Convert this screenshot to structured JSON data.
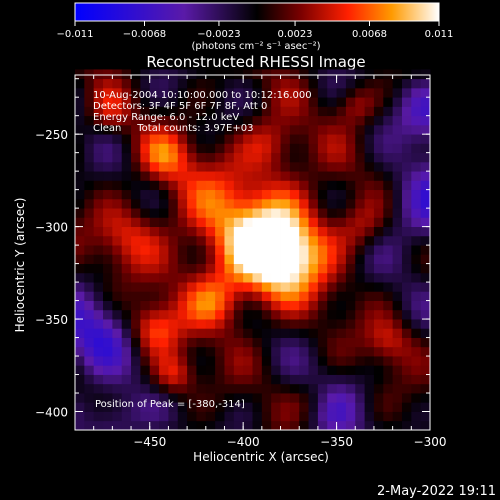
{
  "chart_data": {
    "type": "heatmap",
    "title": "Reconstructed RHESSI Image",
    "xlabel": "Heliocentric X (arcsec)",
    "ylabel": "Heliocentric Y (arcsec)",
    "xlim": [
      -490,
      -300
    ],
    "ylim": [
      -410,
      -218
    ],
    "x_ticks": [
      -450,
      -400,
      -350,
      -300
    ],
    "x_tick_labels": [
      "−450",
      "−400",
      "−350",
      "−300"
    ],
    "y_ticks": [
      -400,
      -350,
      -300,
      -250
    ],
    "y_tick_labels": [
      "−400",
      "−350",
      "−300",
      "−250"
    ],
    "colorbar": {
      "min": -0.011,
      "max": 0.011,
      "ticks": [
        -0.011,
        -0.0068,
        -0.0023,
        0.0023,
        0.0068,
        0.011
      ],
      "tick_labels": [
        "−0.011",
        "−0.0068",
        "−0.0023",
        "0.0023",
        "0.0068",
        "0.011"
      ],
      "units": "(photons cm⁻² s⁻¹ asec⁻²)",
      "colormap": "blue-purple-red-yellow-white"
    },
    "annotations": [
      "10-Aug-2004 10:10:00.000 to 10:12:16.000",
      "Detectors: 3F 4F 5F 6F 7F 8F, Att 0",
      "Energy Range: 6.0 - 12.0 keV",
      "Clean     Total counts: 3.97E+03"
    ],
    "peak_label": "Position of Peak = [-380,-314]",
    "peak_position": [
      -380,
      -314
    ],
    "sources": [
      {
        "x": -380,
        "y": -314,
        "peak": 0.011,
        "sigma": 16
      },
      {
        "x": -400,
        "y": -300,
        "peak": 0.0065,
        "sigma": 28
      },
      {
        "x": -448,
        "y": -355,
        "peak": 0.006,
        "sigma": 10
      },
      {
        "x": -437,
        "y": -380,
        "peak": 0.0052,
        "sigma": 8
      },
      {
        "x": -442,
        "y": -262,
        "peak": 0.0048,
        "sigma": 10
      },
      {
        "x": -462,
        "y": -305,
        "peak": 0.0042,
        "sigma": 12
      },
      {
        "x": -415,
        "y": -340,
        "peak": 0.005,
        "sigma": 11
      },
      {
        "x": -337,
        "y": -300,
        "peak": 0.004,
        "sigma": 10
      },
      {
        "x": -322,
        "y": -362,
        "peak": 0.004,
        "sigma": 9
      },
      {
        "x": -340,
        "y": -234,
        "peak": 0.004,
        "sigma": 8
      },
      {
        "x": -362,
        "y": -394,
        "peak": 0.003,
        "sigma": 9
      },
      {
        "x": -385,
        "y": -255,
        "peak": 0.0038,
        "sigma": 10
      },
      {
        "x": -472,
        "y": -238,
        "peak": 0.0028,
        "sigma": 8
      },
      {
        "x": -300,
        "y": -290,
        "peak": -0.006,
        "sigma": 18
      },
      {
        "x": -355,
        "y": -400,
        "peak": -0.004,
        "sigma": 14
      },
      {
        "x": -482,
        "y": -360,
        "peak": -0.006,
        "sigma": 16
      },
      {
        "x": -300,
        "y": -238,
        "peak": -0.005,
        "sigma": 12
      },
      {
        "x": -470,
        "y": -405,
        "peak": -0.005,
        "sigma": 12
      }
    ]
  },
  "footer": {
    "date": "2-May-2022 19:11"
  }
}
